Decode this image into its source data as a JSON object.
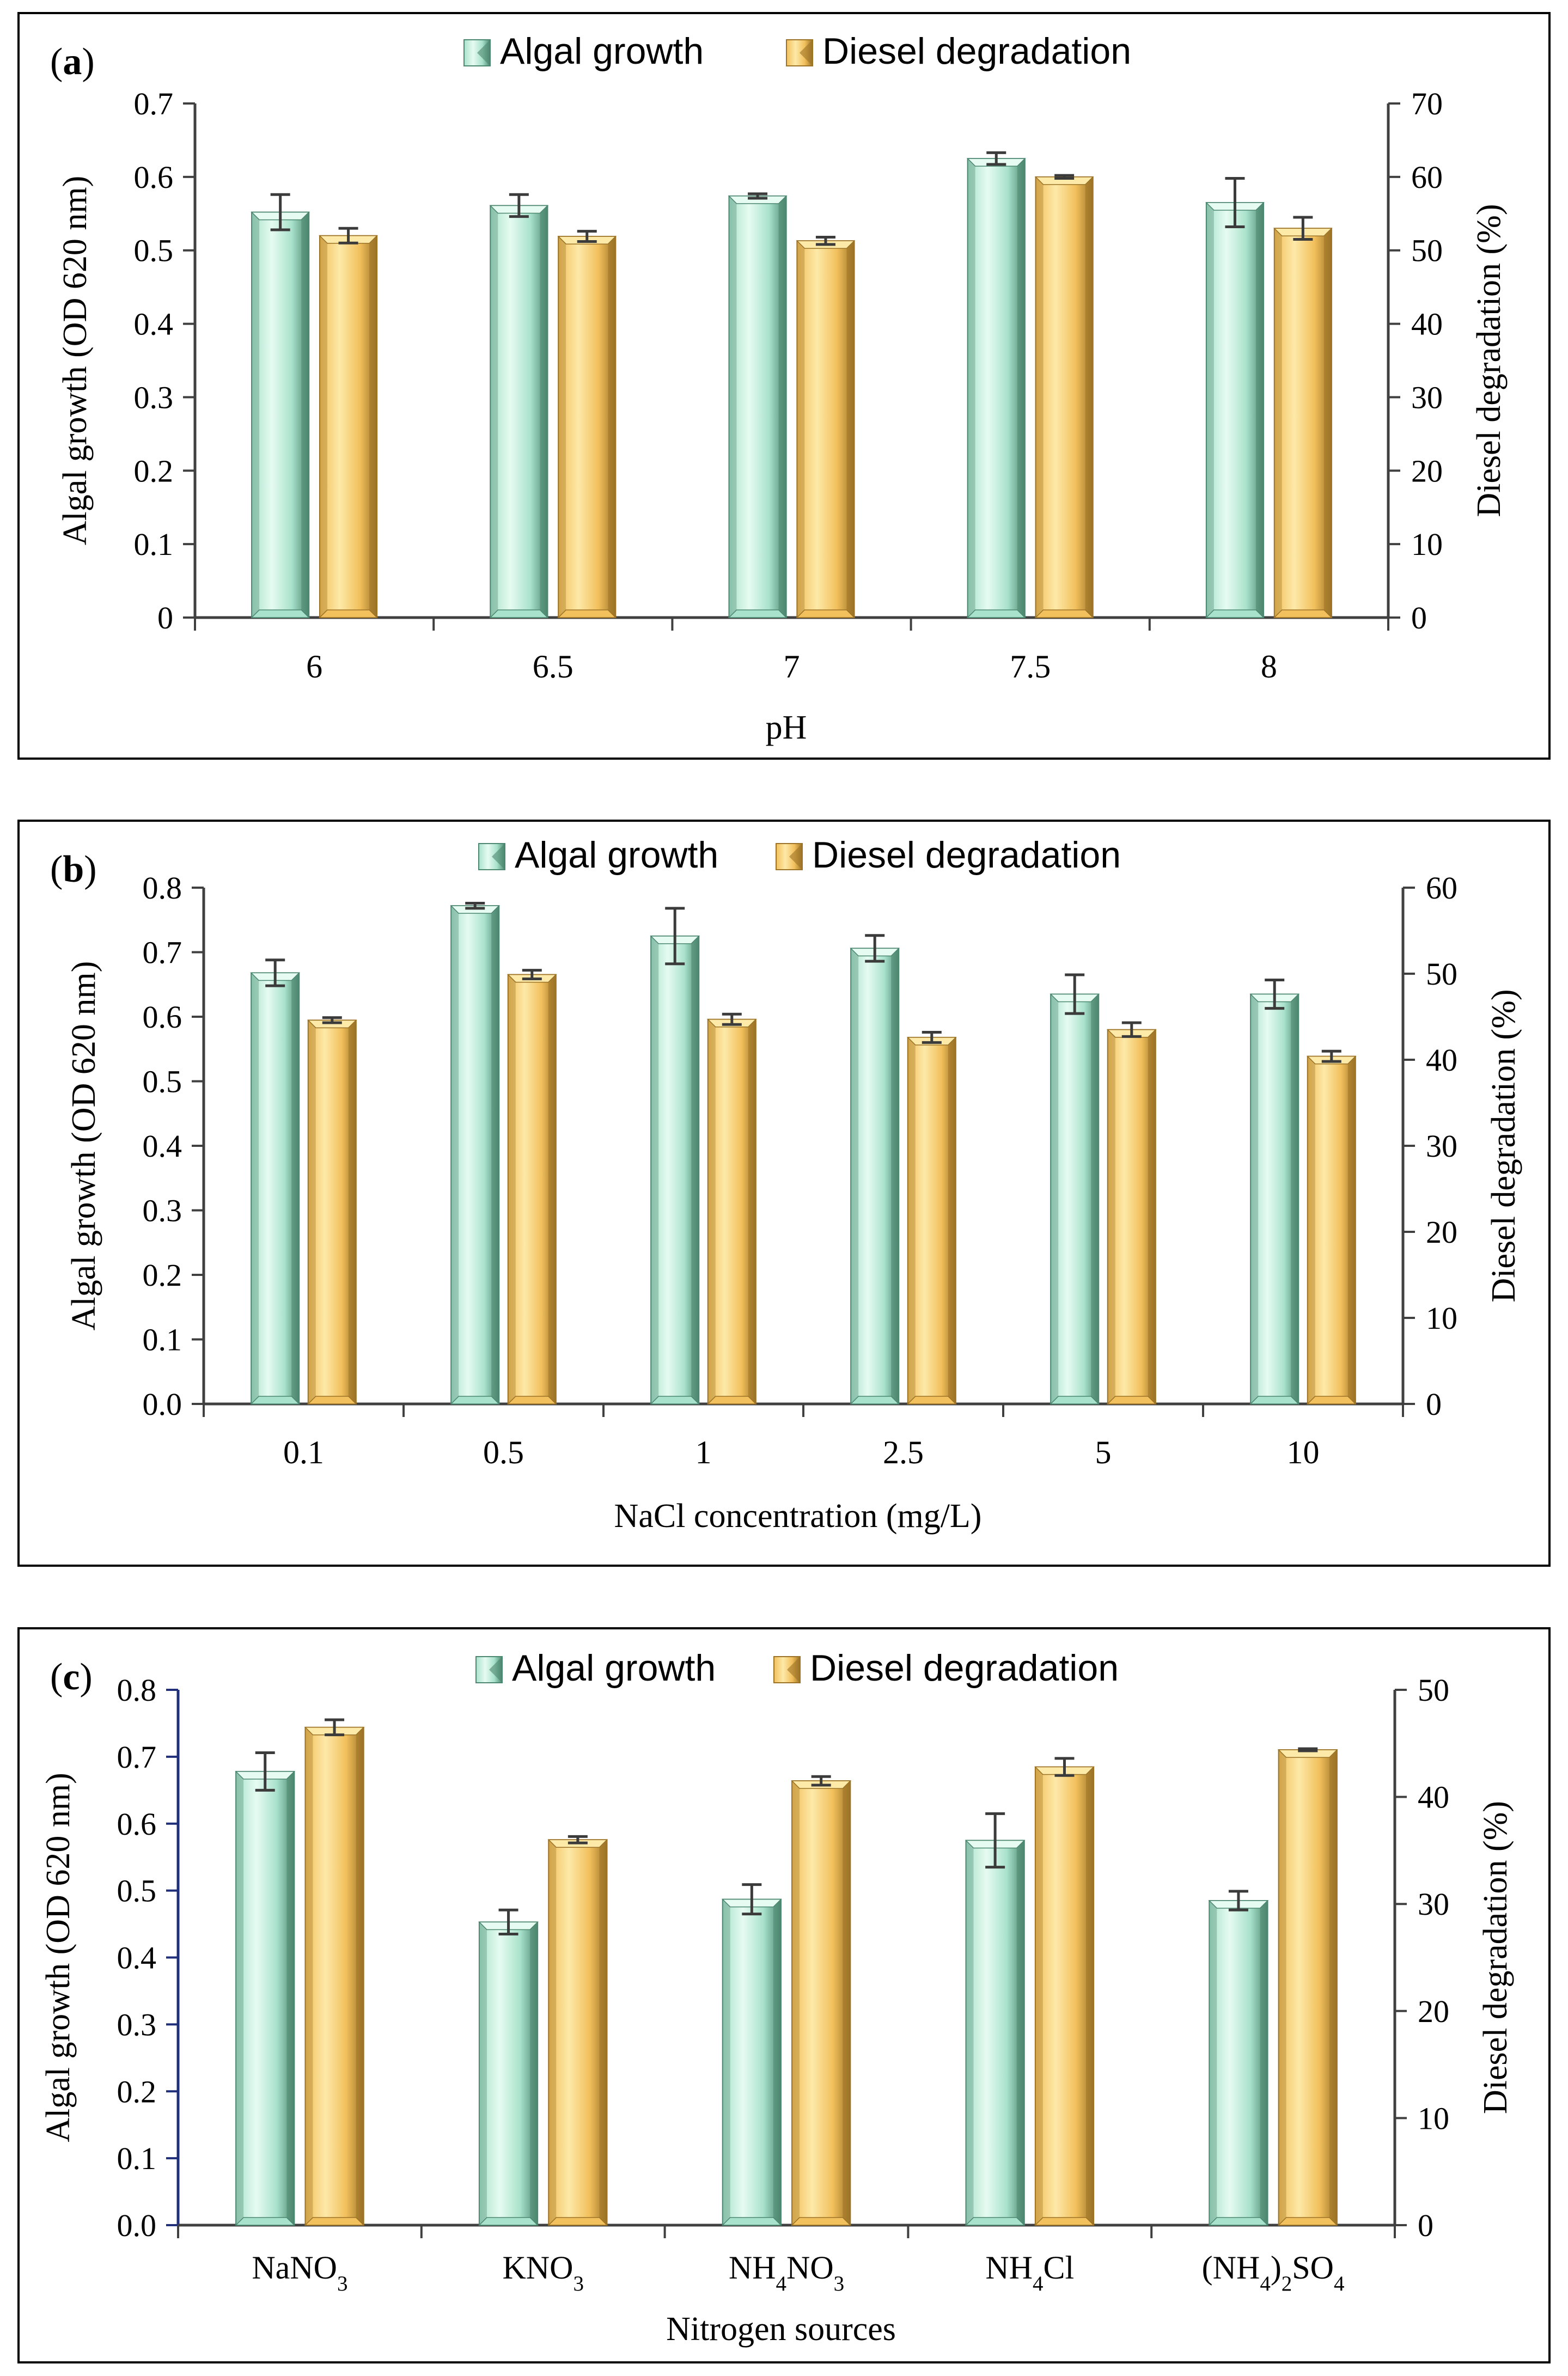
{
  "chart_data": [
    {
      "type": "bar",
      "panel_label": "a",
      "xlabel": "pH",
      "ylabel": "Algal growth (OD 620 nm)",
      "y2label": "Diesel degradation (%)",
      "categories": [
        "6",
        "6.5",
        "7",
        "7.5",
        "8"
      ],
      "ylim": [
        0,
        0.7
      ],
      "yticks": [
        "0",
        "0.1",
        "0.2",
        "0.3",
        "0.4",
        "0.5",
        "0.6",
        "0.7"
      ],
      "y2lim": [
        0,
        70
      ],
      "y2ticks": [
        "0",
        "10",
        "20",
        "30",
        "40",
        "50",
        "60",
        "70"
      ],
      "series": [
        {
          "name": "Algal growth",
          "axis": "left",
          "values": [
            0.552,
            0.561,
            0.574,
            0.625,
            0.565
          ],
          "errors": [
            0.024,
            0.015,
            0.003,
            0.008,
            0.033
          ]
        },
        {
          "name": "Diesel degradation",
          "axis": "right",
          "values": [
            52.0,
            51.9,
            51.3,
            60.0,
            53.0
          ],
          "errors": [
            1.0,
            0.7,
            0.5,
            0.2,
            1.5
          ]
        }
      ],
      "legend": "top-center"
    },
    {
      "type": "bar",
      "panel_label": "b",
      "xlabel": "NaCl concentration (mg/L)",
      "ylabel": "Algal growth (OD 620 nm)",
      "y2label": "Diesel degradation (%)",
      "categories": [
        "0.1",
        "0.5",
        "1",
        "2.5",
        "5",
        "10"
      ],
      "ylim": [
        0,
        0.8
      ],
      "yticks": [
        "0.0",
        "0.1",
        "0.2",
        "0.3",
        "0.4",
        "0.5",
        "0.6",
        "0.7",
        "0.8"
      ],
      "y2lim": [
        0,
        60
      ],
      "y2ticks": [
        "0",
        "10",
        "20",
        "30",
        "40",
        "50",
        "60"
      ],
      "series": [
        {
          "name": "Algal growth",
          "axis": "left",
          "values": [
            0.668,
            0.772,
            0.725,
            0.706,
            0.635,
            0.635
          ],
          "errors": [
            0.02,
            0.004,
            0.043,
            0.02,
            0.03,
            0.022
          ]
        },
        {
          "name": "Diesel degradation",
          "axis": "right",
          "values": [
            44.6,
            49.9,
            44.7,
            42.6,
            43.5,
            40.4
          ],
          "errors": [
            0.3,
            0.5,
            0.6,
            0.6,
            0.8,
            0.6
          ]
        }
      ],
      "legend": "top-center"
    },
    {
      "type": "bar",
      "panel_label": "c",
      "xlabel": "Nitrogen sources",
      "ylabel": "Algal growth (OD 620 nm)",
      "y2label": "Diesel degradation (%)",
      "categories": [
        "NaNO3",
        "KNO3",
        "NH4NO3",
        "NH4Cl",
        "(NH4)2SO4"
      ],
      "ylim": [
        0,
        0.8
      ],
      "yticks": [
        "0.0",
        "0.1",
        "0.2",
        "0.3",
        "0.4",
        "0.5",
        "0.6",
        "0.7",
        "0.8"
      ],
      "y2lim": [
        0,
        50
      ],
      "y2ticks": [
        "0",
        "10",
        "20",
        "30",
        "40",
        "50"
      ],
      "series": [
        {
          "name": "Algal growth",
          "axis": "left",
          "values": [
            0.678,
            0.453,
            0.487,
            0.575,
            0.485
          ],
          "errors": [
            0.028,
            0.018,
            0.022,
            0.04,
            0.014
          ]
        },
        {
          "name": "Diesel degradation",
          "axis": "right",
          "values": [
            46.5,
            36.0,
            41.5,
            42.8,
            44.4
          ],
          "errors": [
            0.7,
            0.3,
            0.4,
            0.8,
            0.1
          ]
        }
      ],
      "legend": "top-center"
    }
  ],
  "colors": {
    "algal_light": "#e6fbf1",
    "algal_mid": "#a9e2cc",
    "algal_dark": "#4c8770",
    "diesel_light": "#fde9a8",
    "diesel_mid": "#f2c05c",
    "diesel_dark": "#9c7326",
    "axis": "#404040",
    "left_axis_c": "#1f2f7a",
    "error_bar": "#3b3b3b"
  }
}
